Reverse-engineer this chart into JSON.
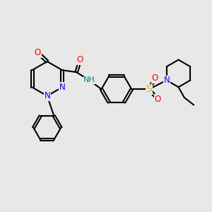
{
  "background_color": "#e8e8e8",
  "bond_color": "#000000",
  "atom_colors": {
    "N": "#0000ff",
    "O": "#ff0000",
    "S": "#cccc00",
    "C": "#000000",
    "H": "#008080"
  },
  "font_size_atoms": 8.5,
  "fig_width": 3.0,
  "fig_height": 3.0
}
